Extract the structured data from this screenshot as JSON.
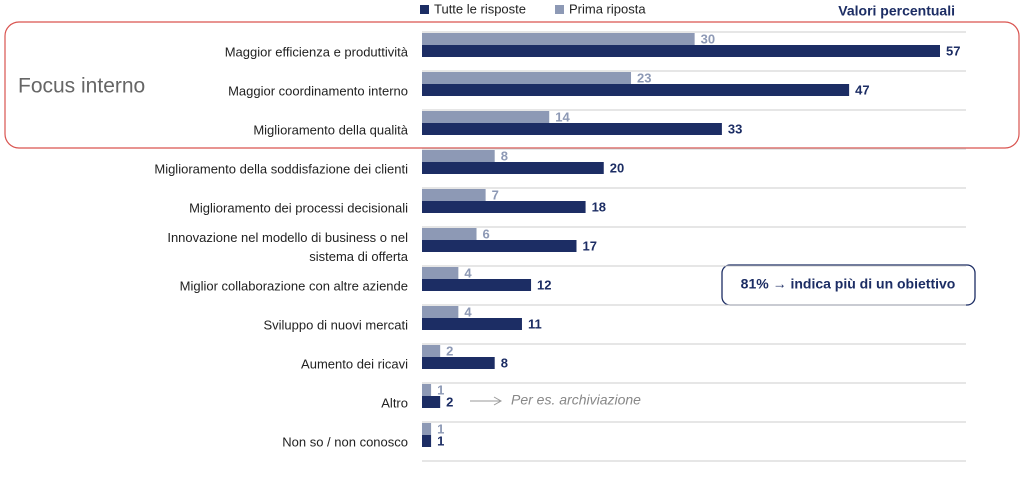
{
  "chart_data": {
    "type": "hbar",
    "unit_note": "Valori percentuali",
    "group_label": "Focus interno",
    "note": "81% → indica più di un obiettivo",
    "arrow_note": "Per es. archiviazione",
    "categories": [
      "Maggior efficienza e produttività",
      "Maggior coordinamento interno",
      "Miglioramento della qualità",
      "Miglioramento della soddisfazione dei clienti",
      "Miglioramento dei processi decisionali",
      "Innovazione nel modello di business o nel sistema di offerta",
      "Miglior collaborazione con altre aziende",
      "Sviluppo di nuovi mercati",
      "Aumento dei ricavi",
      "Altro",
      "Non so / non conosco"
    ],
    "series": [
      {
        "name": "Tutte le risposte",
        "color": "#1c2d64",
        "values": [
          57,
          47,
          33,
          20,
          18,
          17,
          12,
          11,
          8,
          2,
          1
        ]
      },
      {
        "name": "Prima riposta",
        "color": "#8d99b5",
        "values": [
          30,
          23,
          14,
          8,
          7,
          6,
          4,
          4,
          2,
          1,
          1
        ]
      }
    ],
    "legend": "top"
  }
}
